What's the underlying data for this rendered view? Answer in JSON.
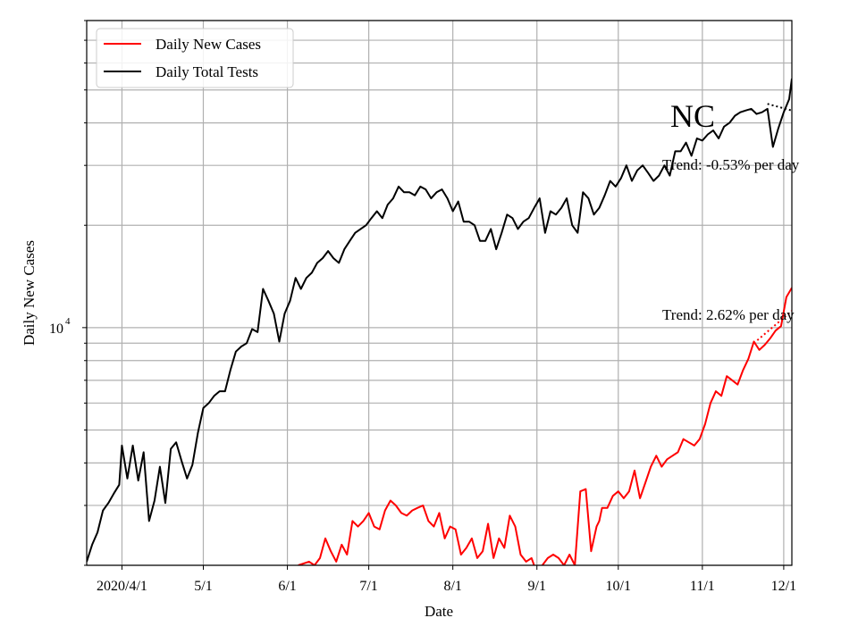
{
  "chart_data": {
    "type": "line",
    "title": "",
    "state_label": "NC",
    "xlabel": "Date",
    "ylabel": "Daily New Cases",
    "yscale": "log",
    "y_tick_label": "10",
    "y_tick_exponent": "4",
    "y_tick_value": 10000,
    "ylim": [
      2000,
      80000
    ],
    "xlim": [
      "2020-03-19",
      "2020-12-04"
    ],
    "x_ticks": [
      {
        "label": "2020/4/1",
        "date": "2020-04-01"
      },
      {
        "label": "5/1",
        "date": "2020-05-01"
      },
      {
        "label": "6/1",
        "date": "2020-06-01"
      },
      {
        "label": "7/1",
        "date": "2020-07-01"
      },
      {
        "label": "8/1",
        "date": "2020-08-01"
      },
      {
        "label": "9/1",
        "date": "2020-09-01"
      },
      {
        "label": "10/1",
        "date": "2020-10-01"
      },
      {
        "label": "11/1",
        "date": "2020-11-01"
      },
      {
        "label": "12/1",
        "date": "2020-12-01"
      }
    ],
    "grid": true,
    "legend_position": "top-left",
    "series": [
      {
        "name": "Daily New Cases",
        "color": "#ff0000",
        "x": [
          "2020-06-05",
          "2020-06-09",
          "2020-06-11",
          "2020-06-13",
          "2020-06-15",
          "2020-06-17",
          "2020-06-19",
          "2020-06-21",
          "2020-06-23",
          "2020-06-25",
          "2020-06-27",
          "2020-06-29",
          "2020-07-01",
          "2020-07-03",
          "2020-07-05",
          "2020-07-07",
          "2020-07-09",
          "2020-07-11",
          "2020-07-13",
          "2020-07-15",
          "2020-07-17",
          "2020-07-19",
          "2020-07-21",
          "2020-07-23",
          "2020-07-25",
          "2020-07-27",
          "2020-07-29",
          "2020-07-31",
          "2020-08-02",
          "2020-08-04",
          "2020-08-06",
          "2020-08-08",
          "2020-08-10",
          "2020-08-12",
          "2020-08-14",
          "2020-08-16",
          "2020-08-18",
          "2020-08-20",
          "2020-08-22",
          "2020-08-24",
          "2020-08-26",
          "2020-08-28",
          "2020-08-30",
          "2020-09-01",
          "2020-09-03",
          "2020-09-05",
          "2020-09-07",
          "2020-09-09",
          "2020-09-11",
          "2020-09-13",
          "2020-09-15",
          "2020-09-17",
          "2020-09-19",
          "2020-09-21",
          "2020-09-23",
          "2020-09-24",
          "2020-09-25",
          "2020-09-27",
          "2020-09-29",
          "2020-10-01",
          "2020-10-03",
          "2020-10-05",
          "2020-10-07",
          "2020-10-09",
          "2020-10-11",
          "2020-10-13",
          "2020-10-15",
          "2020-10-17",
          "2020-10-19",
          "2020-10-21",
          "2020-10-23",
          "2020-10-25",
          "2020-10-27",
          "2020-10-29",
          "2020-10-31",
          "2020-11-02",
          "2020-11-04",
          "2020-11-06",
          "2020-11-08",
          "2020-11-10",
          "2020-11-12",
          "2020-11-14",
          "2020-11-16",
          "2020-11-18",
          "2020-11-20",
          "2020-11-22",
          "2020-11-24",
          "2020-11-26",
          "2020-11-28",
          "2020-11-30",
          "2020-12-02",
          "2020-12-04"
        ],
        "values": [
          2000,
          2050,
          2000,
          2100,
          2400,
          2200,
          2050,
          2300,
          2150,
          2700,
          2600,
          2700,
          2850,
          2600,
          2550,
          2900,
          3100,
          3000,
          2850,
          2800,
          2900,
          2950,
          3000,
          2700,
          2600,
          2850,
          2400,
          2600,
          2550,
          2150,
          2250,
          2400,
          2100,
          2200,
          2650,
          2100,
          2400,
          2250,
          2800,
          2600,
          2150,
          2050,
          2100,
          1900,
          2000,
          2100,
          2150,
          2100,
          2000,
          2150,
          2000,
          3300,
          3350,
          2200,
          2600,
          2700,
          2950,
          2950,
          3200,
          3300,
          3150,
          3300,
          3800,
          3150,
          3500,
          3900,
          4200,
          3900,
          4100,
          4200,
          4300,
          4700,
          4600,
          4500,
          4700,
          5200,
          6000,
          6500,
          6300,
          7200,
          7000,
          6800,
          7500,
          8100,
          9100,
          8600,
          8900,
          9300,
          9800,
          10100,
          12300,
          13100
        ]
      },
      {
        "name": "Daily Total Tests",
        "color": "#000000",
        "x": [
          "2020-03-19",
          "2020-03-21",
          "2020-03-23",
          "2020-03-25",
          "2020-03-27",
          "2020-03-29",
          "2020-03-31",
          "2020-04-01",
          "2020-04-03",
          "2020-04-05",
          "2020-04-07",
          "2020-04-09",
          "2020-04-11",
          "2020-04-13",
          "2020-04-15",
          "2020-04-17",
          "2020-04-19",
          "2020-04-21",
          "2020-04-23",
          "2020-04-25",
          "2020-04-27",
          "2020-04-29",
          "2020-05-01",
          "2020-05-03",
          "2020-05-05",
          "2020-05-07",
          "2020-05-09",
          "2020-05-11",
          "2020-05-13",
          "2020-05-15",
          "2020-05-17",
          "2020-05-19",
          "2020-05-21",
          "2020-05-23",
          "2020-05-25",
          "2020-05-27",
          "2020-05-29",
          "2020-05-31",
          "2020-06-02",
          "2020-06-04",
          "2020-06-06",
          "2020-06-08",
          "2020-06-10",
          "2020-06-12",
          "2020-06-14",
          "2020-06-16",
          "2020-06-18",
          "2020-06-20",
          "2020-06-22",
          "2020-06-24",
          "2020-06-26",
          "2020-06-28",
          "2020-06-30",
          "2020-07-02",
          "2020-07-04",
          "2020-07-06",
          "2020-07-08",
          "2020-07-10",
          "2020-07-12",
          "2020-07-14",
          "2020-07-16",
          "2020-07-18",
          "2020-07-20",
          "2020-07-22",
          "2020-07-24",
          "2020-07-26",
          "2020-07-28",
          "2020-07-30",
          "2020-08-01",
          "2020-08-03",
          "2020-08-05",
          "2020-08-07",
          "2020-08-09",
          "2020-08-11",
          "2020-08-13",
          "2020-08-15",
          "2020-08-17",
          "2020-08-19",
          "2020-08-21",
          "2020-08-23",
          "2020-08-25",
          "2020-08-27",
          "2020-08-29",
          "2020-08-31",
          "2020-09-02",
          "2020-09-04",
          "2020-09-06",
          "2020-09-08",
          "2020-09-10",
          "2020-09-12",
          "2020-09-14",
          "2020-09-16",
          "2020-09-18",
          "2020-09-20",
          "2020-09-22",
          "2020-09-24",
          "2020-09-26",
          "2020-09-28",
          "2020-09-30",
          "2020-10-02",
          "2020-10-04",
          "2020-10-06",
          "2020-10-08",
          "2020-10-10",
          "2020-10-12",
          "2020-10-14",
          "2020-10-16",
          "2020-10-18",
          "2020-10-20",
          "2020-10-22",
          "2020-10-24",
          "2020-10-26",
          "2020-10-28",
          "2020-10-30",
          "2020-11-01",
          "2020-11-03",
          "2020-11-05",
          "2020-11-07",
          "2020-11-09",
          "2020-11-11",
          "2020-11-13",
          "2020-11-15",
          "2020-11-17",
          "2020-11-19",
          "2020-11-21",
          "2020-11-23",
          "2020-11-25",
          "2020-11-27",
          "2020-11-29",
          "2020-12-01",
          "2020-12-03",
          "2020-12-04"
        ],
        "values": [
          2050,
          2300,
          2500,
          2900,
          3050,
          3250,
          3450,
          4500,
          3600,
          4500,
          3550,
          4300,
          2700,
          3100,
          3900,
          3050,
          4400,
          4600,
          4050,
          3600,
          3950,
          4900,
          5800,
          6000,
          6300,
          6500,
          6500,
          7500,
          8500,
          8800,
          9000,
          9900,
          9700,
          13000,
          12000,
          11000,
          9100,
          11000,
          12000,
          14000,
          13000,
          14000,
          14500,
          15500,
          16000,
          16800,
          16000,
          15500,
          17000,
          18000,
          19000,
          19500,
          20000,
          21000,
          22000,
          21000,
          23000,
          24000,
          26000,
          25000,
          25000,
          24500,
          26000,
          25500,
          24000,
          25000,
          25500,
          24000,
          22000,
          23500,
          20500,
          20500,
          20000,
          18000,
          18000,
          19500,
          17000,
          19000,
          21500,
          21000,
          19500,
          20500,
          21000,
          22500,
          24000,
          19000,
          22000,
          21500,
          22500,
          24000,
          20000,
          19000,
          25000,
          24000,
          21500,
          22500,
          24500,
          27000,
          26000,
          27500,
          30000,
          27000,
          29000,
          30000,
          28500,
          27000,
          28000,
          30000,
          28000,
          33000,
          33000,
          35000,
          32000,
          36000,
          35500,
          37000,
          38000,
          36000,
          39000,
          40000,
          42000,
          43000,
          43500,
          44000,
          42500,
          43000,
          44000,
          34000,
          38500,
          43000,
          47000,
          54000
        ]
      }
    ],
    "annotations": [
      {
        "text": "Trend: -0.53% per day"
      },
      {
        "text": "Trend: 2.62% per day"
      }
    ]
  }
}
